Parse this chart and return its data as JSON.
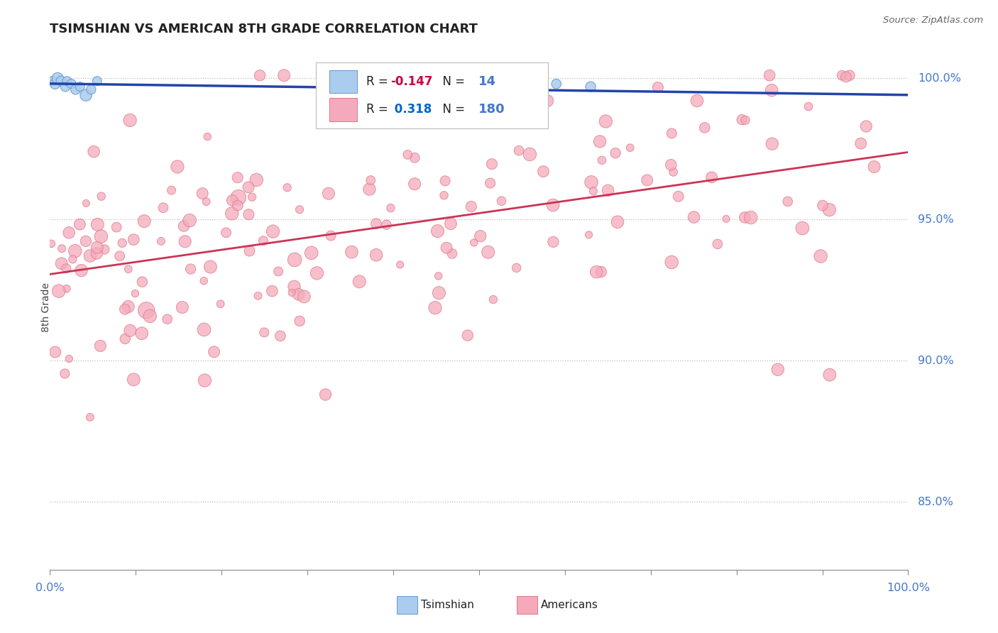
{
  "title": "TSIMSHIAN VS AMERICAN 8TH GRADE CORRELATION CHART",
  "source": "Source: ZipAtlas.com",
  "ylabel": "8th Grade",
  "ylabel_right_ticks": [
    85.0,
    90.0,
    95.0,
    100.0
  ],
  "xlim": [
    0.0,
    1.0
  ],
  "ylim": [
    0.826,
    1.012
  ],
  "R_tsimshian": -0.147,
  "N_tsimshian": 14,
  "R_american": 0.318,
  "N_american": 180,
  "tsimshian_color": "#aaccee",
  "tsimshian_edge": "#6699cc",
  "american_color": "#f5aabb",
  "american_edge": "#dd7788",
  "trend_tsimshian_color": "#2244aa",
  "trend_american_color": "#cc3355",
  "background": "#ffffff",
  "grid_color": "#bbbbbb",
  "title_color": "#222222",
  "axis_label_color": "#4477cc",
  "legend_R_tsim_color": "#cc0044",
  "legend_R_amer_color": "#0066cc",
  "legend_N_color": "#4477cc"
}
